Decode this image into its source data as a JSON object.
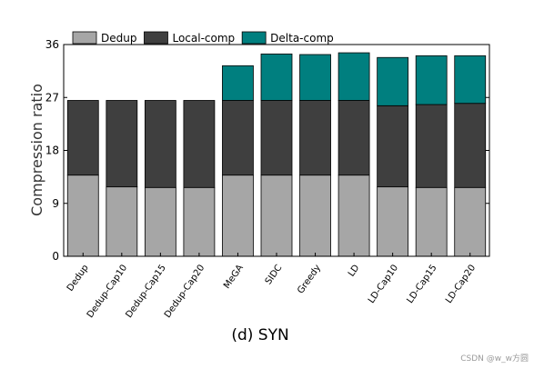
{
  "watermark": "CSDN @w_w方圆",
  "chart_data": {
    "type": "bar",
    "stacked": true,
    "title": "",
    "subtitle": "",
    "xlabel": "(d) SYN",
    "ylabel": "Compression ratio",
    "ylim": [
      0,
      36
    ],
    "yticks": [
      0,
      9,
      18,
      27,
      36
    ],
    "grid": false,
    "legend_position": "top",
    "categories": [
      "Dedup",
      "Dedup-Cap10",
      "Dedup-Cap15",
      "Dedup-Cap20",
      "MeGA",
      "SIDC",
      "Greedy",
      "LD",
      "LD-Cap10",
      "LD-Cap15",
      "LD-Cap20"
    ],
    "series": [
      {
        "name": "Dedup",
        "color": "#a6a6a6",
        "values": [
          13.8,
          11.8,
          11.7,
          11.7,
          13.8,
          13.8,
          13.8,
          13.8,
          11.8,
          11.7,
          11.7
        ]
      },
      {
        "name": "Local-comp",
        "color": "#3f3f3f",
        "values": [
          12.7,
          14.7,
          14.8,
          14.8,
          12.7,
          12.7,
          12.7,
          12.7,
          13.8,
          14.1,
          14.3
        ]
      },
      {
        "name": "Delta-comp",
        "color": "#007f7f",
        "values": [
          0,
          0,
          0,
          0,
          5.9,
          7.9,
          7.8,
          8.1,
          8.2,
          8.3,
          8.1
        ]
      }
    ]
  }
}
